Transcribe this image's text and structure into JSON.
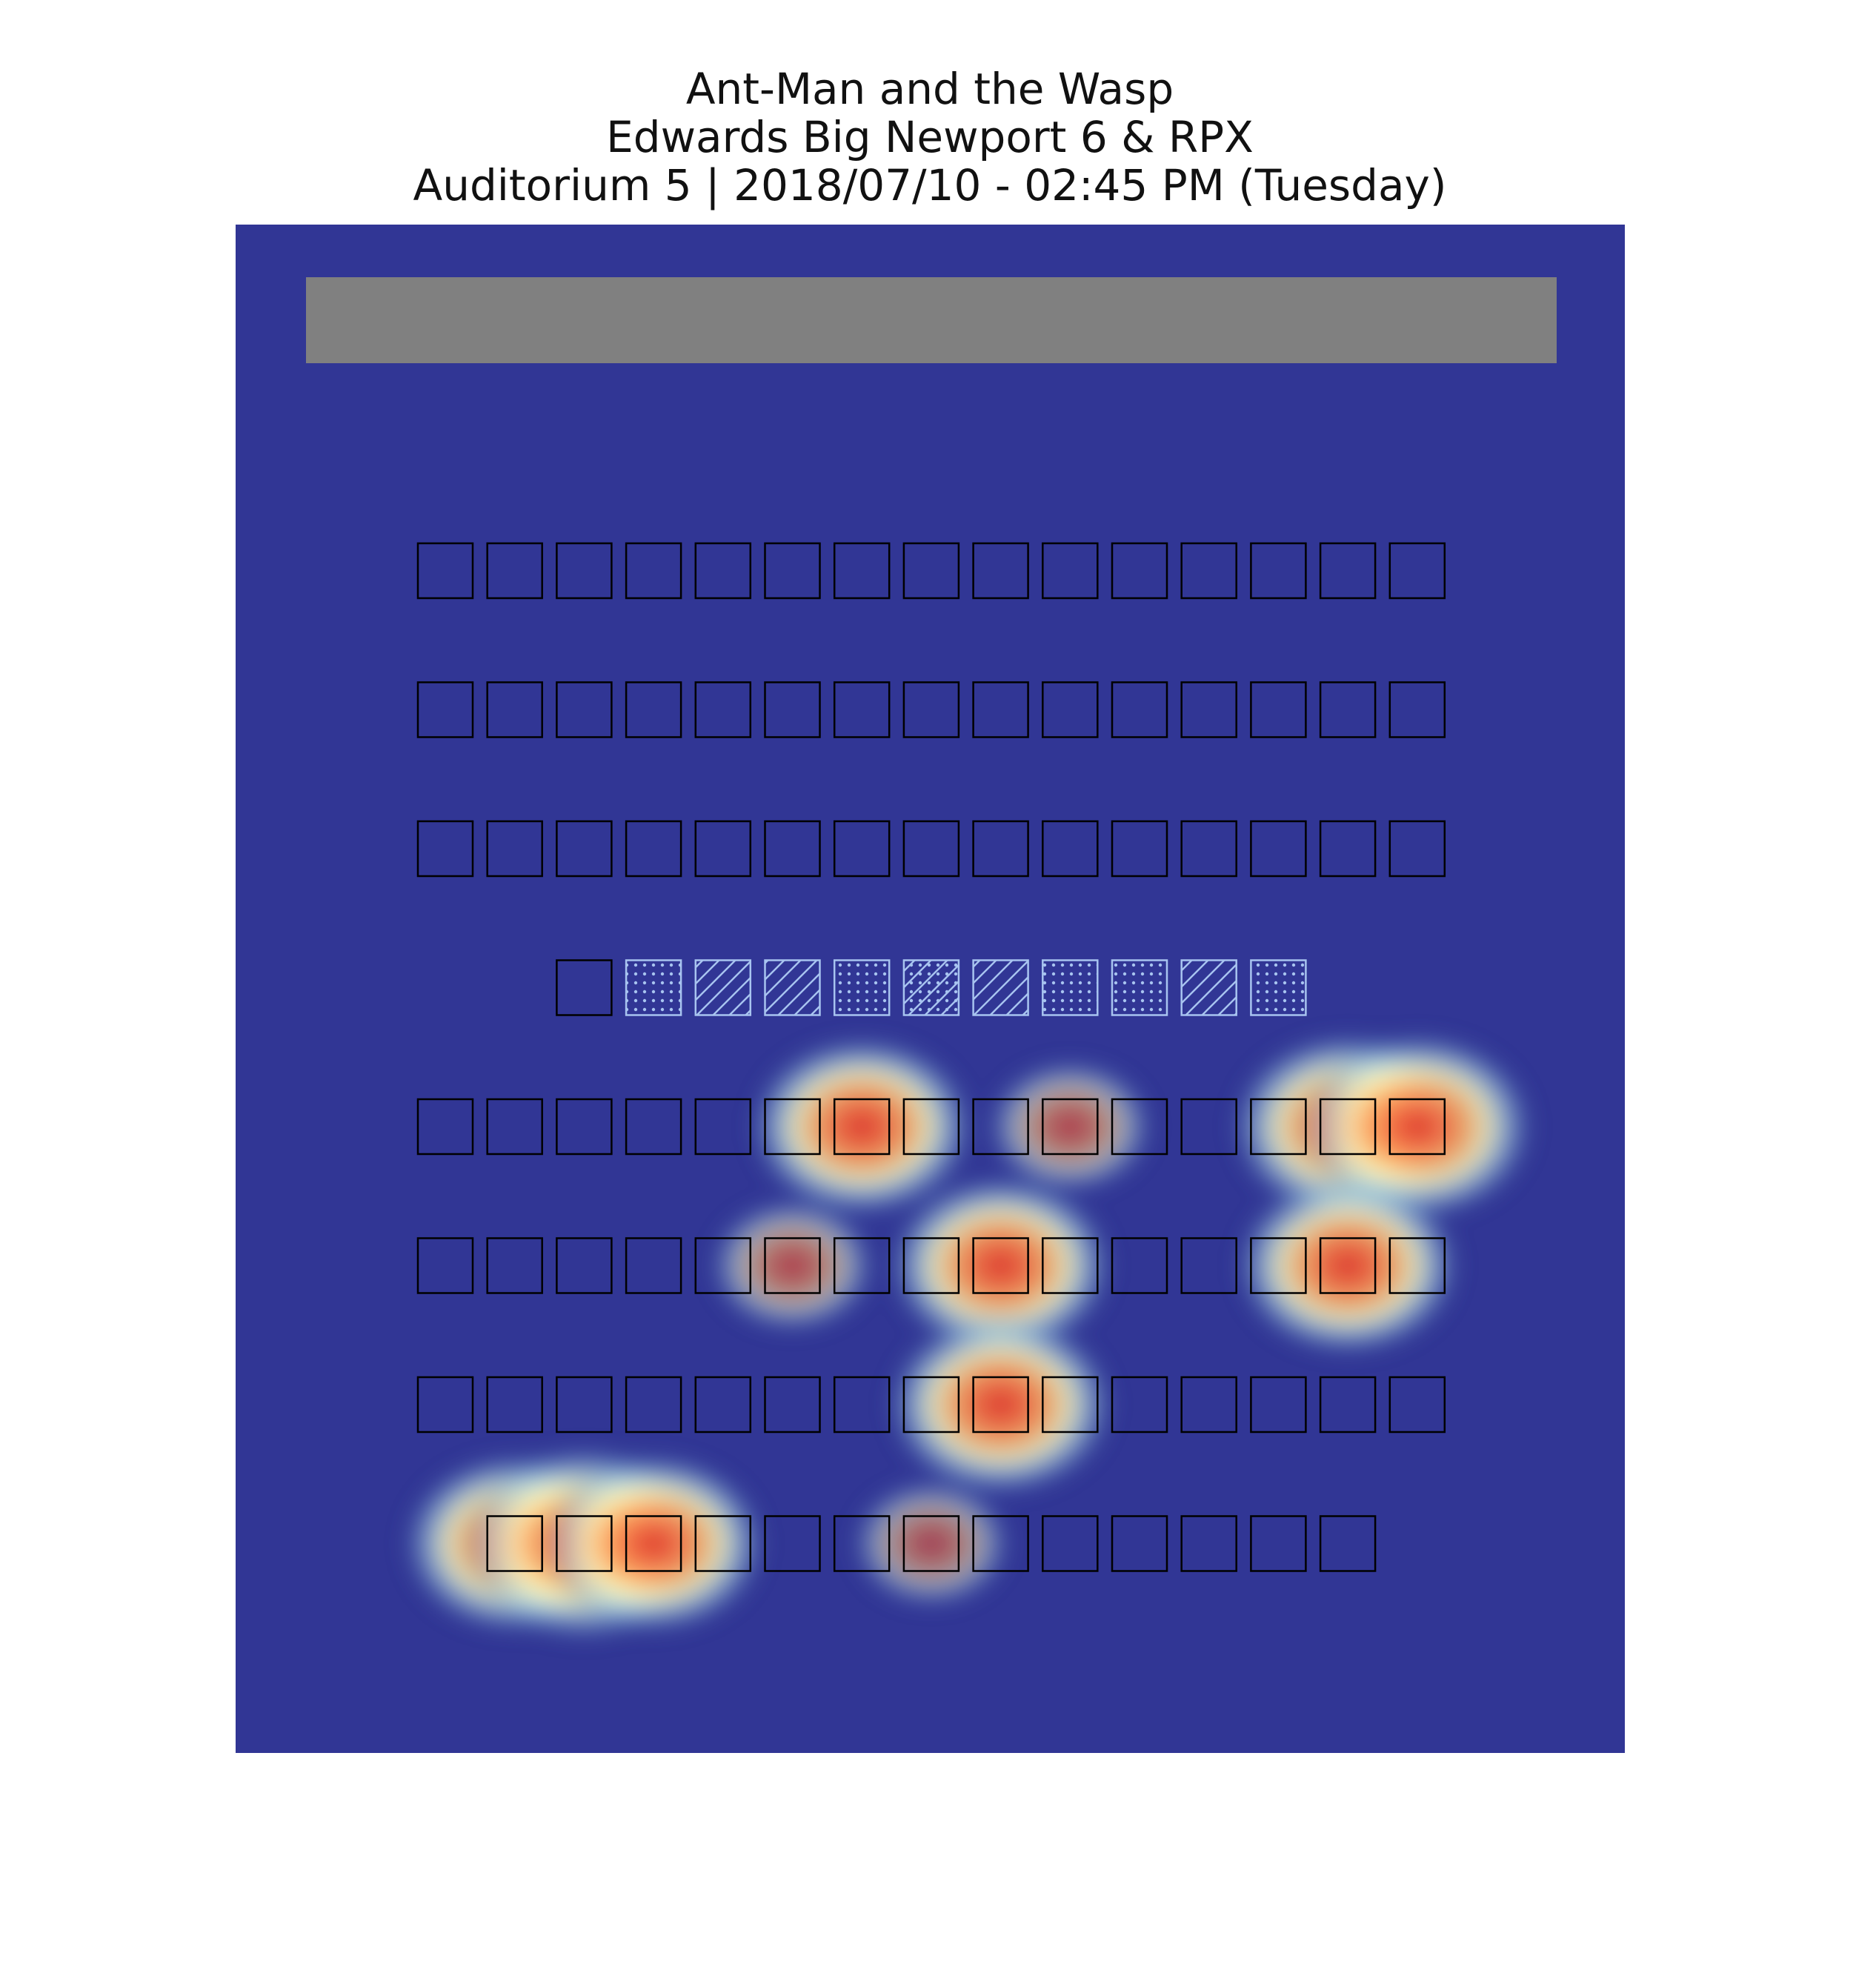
{
  "title": {
    "movie": "Ant-Man and the Wasp",
    "theater": "Edwards Big Newport 6 & RPX",
    "showing": "Auditorium 5 | 2018/07/10 - 02:45 PM (Tuesday)"
  },
  "chart_data": {
    "type": "heatmap",
    "title": "Ant-Man and the Wasp",
    "grid": false,
    "legend": "none",
    "colors": {
      "background": "#313695",
      "screen": "#808080",
      "seat_outline": "#000000",
      "marked_seat_outline": "#a8c4f0",
      "heat_scale": [
        "#313695",
        "#4575b4",
        "#abd9e9",
        "#ffffbf",
        "#fdae61",
        "#f46d43",
        "#d73027"
      ]
    },
    "seat_legend": [
      {
        "state": "available",
        "pattern": "none"
      },
      {
        "state": "marked-dots",
        "pattern": "dots"
      },
      {
        "state": "marked-hatch",
        "pattern": "hatch"
      },
      {
        "state": "marked-both",
        "pattern": "hatch-dots"
      }
    ],
    "rows": [
      {
        "row": 1,
        "offset": 0,
        "seats": [
          "available",
          "available",
          "available",
          "available",
          "available",
          "available",
          "available",
          "available",
          "available",
          "available",
          "available",
          "available",
          "available",
          "available",
          "available"
        ]
      },
      {
        "row": 2,
        "offset": 0,
        "seats": [
          "available",
          "available",
          "available",
          "available",
          "available",
          "available",
          "available",
          "available",
          "available",
          "available",
          "available",
          "available",
          "available",
          "available",
          "available"
        ]
      },
      {
        "row": 3,
        "offset": 0,
        "seats": [
          "available",
          "available",
          "available",
          "available",
          "available",
          "available",
          "available",
          "available",
          "available",
          "available",
          "available",
          "available",
          "available",
          "available",
          "available"
        ]
      },
      {
        "row": 4,
        "offset": 2,
        "seats": [
          "available",
          "marked-dots",
          "marked-hatch",
          "marked-hatch",
          "marked-dots",
          "marked-both",
          "marked-hatch",
          "marked-dots",
          "marked-dots",
          "marked-hatch",
          "marked-dots"
        ]
      },
      {
        "row": 5,
        "offset": 0,
        "seats": [
          "available",
          "available",
          "available",
          "available",
          "available",
          "available",
          "available",
          "available",
          "available",
          "available",
          "available",
          "available",
          "available",
          "available",
          "available"
        ]
      },
      {
        "row": 6,
        "offset": 0,
        "seats": [
          "available",
          "available",
          "available",
          "available",
          "available",
          "available",
          "available",
          "available",
          "available",
          "available",
          "available",
          "available",
          "available",
          "available",
          "available"
        ]
      },
      {
        "row": 7,
        "offset": 0,
        "seats": [
          "available",
          "available",
          "available",
          "available",
          "available",
          "available",
          "available",
          "available",
          "available",
          "available",
          "available",
          "available",
          "available",
          "available",
          "available"
        ]
      },
      {
        "row": 8,
        "offset": 1,
        "seats": [
          "available",
          "available",
          "available",
          "available",
          "available",
          "available",
          "available",
          "available",
          "available",
          "available",
          "available",
          "available",
          "available"
        ]
      }
    ],
    "hotspots": [
      {
        "row": 5,
        "col": 7,
        "intensity": 0.78
      },
      {
        "row": 5,
        "col": 10,
        "intensity": 0.35
      },
      {
        "row": 5,
        "col": 14,
        "intensity": 0.85
      },
      {
        "row": 5,
        "col": 15,
        "intensity": 0.85
      },
      {
        "row": 6,
        "col": 6,
        "intensity": 0.35
      },
      {
        "row": 6,
        "col": 9,
        "intensity": 0.78
      },
      {
        "row": 6,
        "col": 14,
        "intensity": 0.78
      },
      {
        "row": 7,
        "col": 9,
        "intensity": 0.8
      },
      {
        "row": 8,
        "col": 2,
        "intensity": 0.78
      },
      {
        "row": 8,
        "col": 3,
        "intensity": 0.92
      },
      {
        "row": 8,
        "col": 4,
        "intensity": 0.78
      },
      {
        "row": 8,
        "col": 8,
        "intensity": 0.3
      }
    ]
  }
}
